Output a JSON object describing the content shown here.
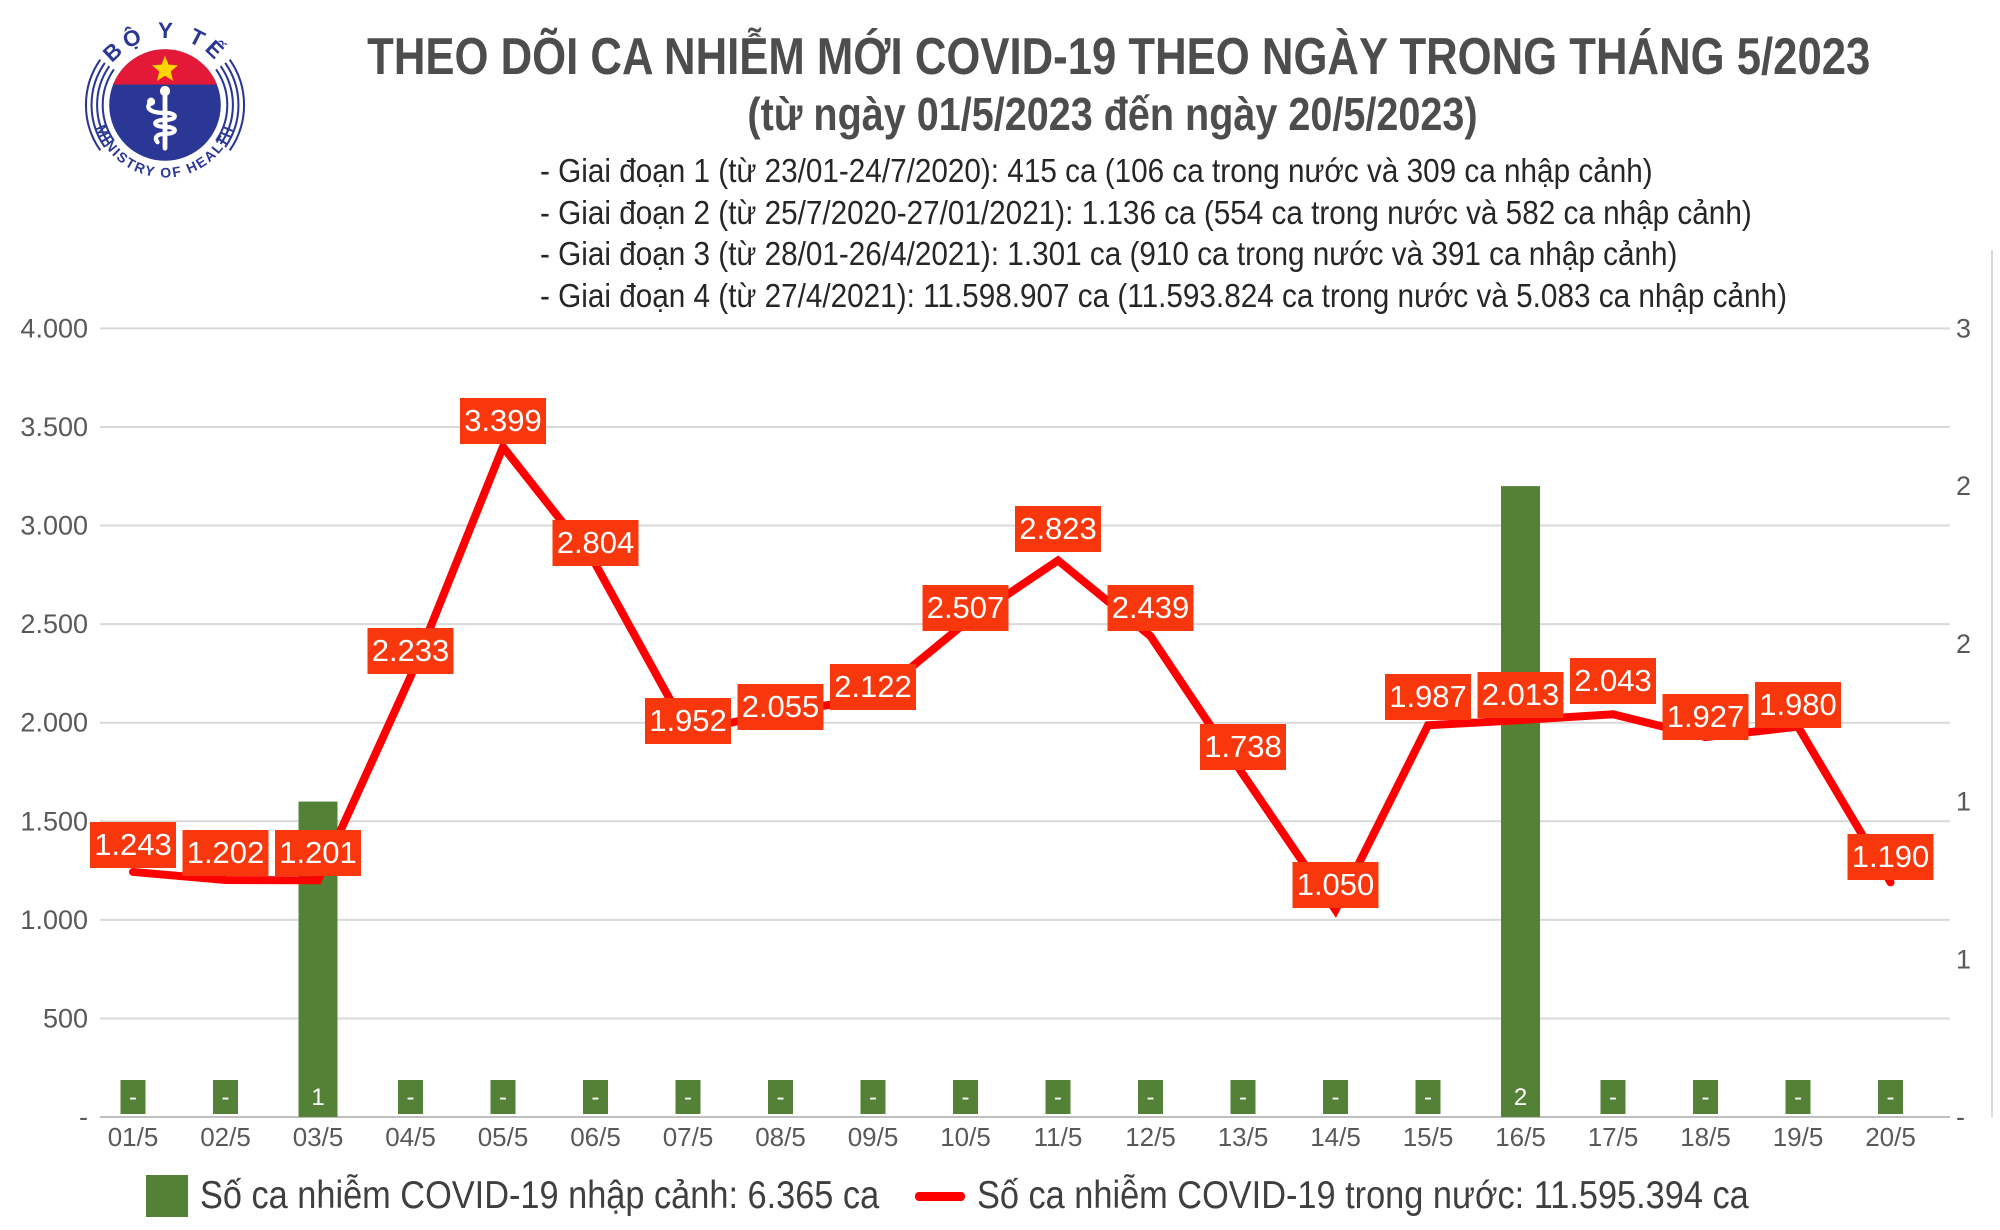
{
  "logo": {
    "top_text": "BỘ Y TẾ",
    "bottom_text": "MINISTRY OF HEALTH"
  },
  "header": {
    "title": "THEO DÕI CA NHIỄM MỚI COVID-19 THEO NGÀY TRONG THÁNG 5/2023",
    "subtitle": "(từ ngày 01/5/2023 đến ngày 20/5/2023)",
    "bullets": [
      "- Giai đoạn 1 (từ 23/01-24/7/2020): 415 ca (106 ca trong nước và 309 ca nhập cảnh)",
      "- Giai đoạn 2 (từ 25/7/2020-27/01/2021): 1.136 ca (554 ca trong nước và 582 ca nhập cảnh)",
      "- Giai đoạn 3 (từ 28/01-26/4/2021): 1.301 ca (910 ca trong nước và 391 ca nhập cảnh)",
      "- Giai đoạn 4 (từ 27/4/2021): 11.598.907 ca (11.593.824 ca trong nước và 5.083 ca nhập cảnh)"
    ]
  },
  "colors": {
    "line": "#FF0000",
    "label_box": "#F8380C",
    "bar": "#538135",
    "grid": "#D9D9D9",
    "axis_line": "#BFBFBF",
    "axis_text": "#595959",
    "title_text": "#4D4D4D"
  },
  "chart_data": {
    "type": "combo-line-bar",
    "title": "THEO DÕI CA NHIỄM MỚI COVID-19 THEO NGÀY TRONG THÁNG 5/2023 (từ ngày 01/5/2023 đến ngày 20/5/2023)",
    "categories": [
      "01/5",
      "02/5",
      "03/5",
      "04/5",
      "05/5",
      "06/5",
      "07/5",
      "08/5",
      "09/5",
      "10/5",
      "11/5",
      "12/5",
      "13/5",
      "14/5",
      "15/5",
      "16/5",
      "17/5",
      "18/5",
      "19/5",
      "20/5"
    ],
    "series": [
      {
        "name": "Số ca nhiễm COVID-19 nhập cảnh",
        "type": "bar",
        "axis": "secondary",
        "values": [
          0,
          0,
          1,
          0,
          0,
          0,
          0,
          0,
          0,
          0,
          0,
          0,
          0,
          0,
          0,
          2,
          0,
          0,
          0,
          0
        ],
        "labels": [
          "-",
          "-",
          "1",
          "-",
          "-",
          "-",
          "-",
          "-",
          "-",
          "-",
          "-",
          "-",
          "-",
          "-",
          "-",
          "2",
          "-",
          "-",
          "-",
          "-"
        ]
      },
      {
        "name": "Số ca nhiễm COVID-19 trong nước",
        "type": "line",
        "axis": "primary",
        "values": [
          1243,
          1202,
          1201,
          2233,
          3399,
          2804,
          1952,
          2055,
          2122,
          2507,
          2823,
          2439,
          1738,
          1050,
          1987,
          2013,
          2043,
          1927,
          1980,
          1190
        ],
        "labels": [
          "1.243",
          "1.202",
          "1.201",
          "2.233",
          "3.399",
          "2.804",
          "1.952",
          "2.055",
          "2.122",
          "2.507",
          "2.823",
          "2.439",
          "1.738",
          "1.050",
          "1.987",
          "2.013",
          "2.043",
          "1.927",
          "1.980",
          "1.190"
        ]
      }
    ],
    "primary_axis": {
      "min": 0,
      "max": 4000,
      "tick_labels": [
        "4.000",
        "3.500",
        "3.000",
        "2.500",
        "2.000",
        "1.500",
        "1.000",
        "500",
        "-"
      ]
    },
    "secondary_axis": {
      "min": 0,
      "max": 2.5,
      "tick_labels": [
        "3",
        "2",
        "2",
        "1",
        "1",
        "-"
      ]
    },
    "grid": true,
    "legend_position": "bottom"
  },
  "legend": {
    "items": [
      {
        "marker": "square",
        "color": "#538135",
        "label": "Số ca nhiễm COVID-19 nhập cảnh: 6.365 ca"
      },
      {
        "marker": "line",
        "color": "#FF0000",
        "label": "Số ca nhiễm COVID-19 trong nước: 11.595.394 ca"
      }
    ]
  }
}
